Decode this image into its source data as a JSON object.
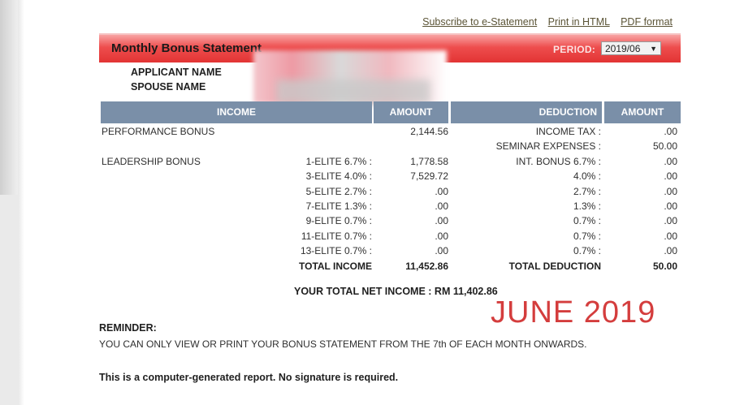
{
  "links": {
    "subscribe": "Subscribe to e-Statement",
    "print_html": "Print in HTML",
    "pdf": "PDF format"
  },
  "header": {
    "title": "Monthly Bonus Statement",
    "period_label": "PERIOD:",
    "period_value": "2019/06"
  },
  "applicant": {
    "applicant_label": "APPLICANT NAME",
    "spouse_label": "SPOUSE NAME"
  },
  "table": {
    "income_header": "INCOME",
    "amount_header_1": "AMOUNT",
    "deduction_header": "DEDUCTION",
    "amount_header_2": "AMOUNT",
    "performance_bonus_label": "PERFORMANCE BONUS",
    "leadership_bonus_label": "LEADERSHIP BONUS",
    "rows": [
      {
        "tier": "",
        "amount": "2,144.56",
        "deduction": "INCOME TAX :",
        "deduction_amount": ".00"
      },
      {
        "tier": "",
        "amount": "",
        "deduction": "SEMINAR EXPENSES :",
        "deduction_amount": "50.00"
      },
      {
        "tier": "1-ELITE 6.7% :",
        "amount": "1,778.58",
        "deduction": "INT. BONUS 6.7% :",
        "deduction_amount": ".00"
      },
      {
        "tier": "3-ELITE 4.0% :",
        "amount": "7,529.72",
        "deduction": "4.0% :",
        "deduction_amount": ".00"
      },
      {
        "tier": "5-ELITE 2.7% :",
        "amount": ".00",
        "deduction": "2.7% :",
        "deduction_amount": ".00"
      },
      {
        "tier": "7-ELITE 1.3% :",
        "amount": ".00",
        "deduction": "1.3% :",
        "deduction_amount": ".00"
      },
      {
        "tier": "9-ELITE 0.7% :",
        "amount": ".00",
        "deduction": "0.7% :",
        "deduction_amount": ".00"
      },
      {
        "tier": "11-ELITE 0.7% :",
        "amount": ".00",
        "deduction": "0.7% :",
        "deduction_amount": ".00"
      },
      {
        "tier": "13-ELITE 0.7% :",
        "amount": ".00",
        "deduction": "0.7% :",
        "deduction_amount": ".00"
      }
    ],
    "total_income_label": "TOTAL INCOME",
    "total_income_value": "11,452.86",
    "total_deduction_label": "TOTAL DEDUCTION",
    "total_deduction_value": "50.00"
  },
  "net_income": "YOUR TOTAL NET INCOME :  RM 11,402.86",
  "stamp_text": "JUNE 2019",
  "reminder": {
    "title": "REMINDER:",
    "text": "YOU CAN ONLY VIEW OR PRINT YOUR BONUS STATEMENT FROM THE 7th OF EACH MONTH ONWARDS."
  },
  "footer_note": "This is a computer-generated report. No signature is required.",
  "colors": {
    "header_red": "#e23434",
    "table_header": "#7a8fa8",
    "stamp_red": "#d43d3d"
  }
}
